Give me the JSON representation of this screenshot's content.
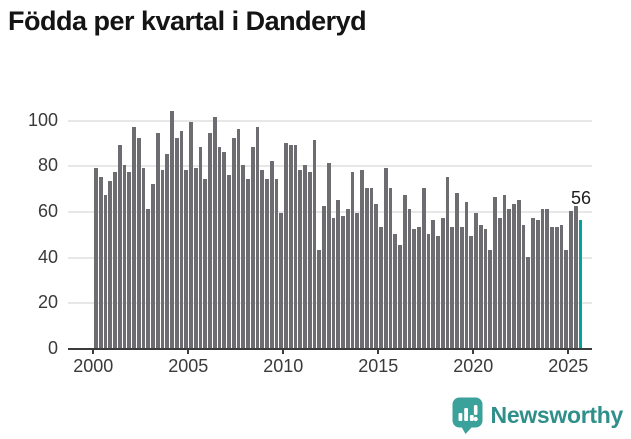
{
  "title": "Födda per kvartal i Danderyd",
  "annotation": {
    "last_value_label": "56"
  },
  "branding": {
    "name": "Newsworthy",
    "icon": "newsworthy-chart-bubble-icon"
  },
  "colors": {
    "bar": "#6c6c71",
    "highlight": "#00a49d",
    "grid": "#e7e7e7",
    "axis": "#3c3c3c",
    "title_text": "#141414",
    "tick_label_text": "#3a3a3a",
    "logo_teal": "#3ba29b",
    "logo_text_teal": "#2f8f8a"
  },
  "chart_data": {
    "type": "bar",
    "title": "Födda per kvartal i Danderyd",
    "frequency": "quarterly",
    "x_start": "2000-Q1",
    "x_end": "2025-Q3",
    "values": [
      79,
      75,
      67,
      73,
      77,
      89,
      80,
      77,
      97,
      92,
      79,
      61,
      72,
      94,
      78,
      85,
      104,
      92,
      95,
      78,
      99,
      79,
      88,
      74,
      94,
      101,
      88,
      86,
      76,
      92,
      96,
      80,
      74,
      88,
      97,
      78,
      74,
      82,
      74,
      59,
      90,
      89,
      89,
      78,
      80,
      77,
      91,
      43,
      62,
      81,
      57,
      65,
      58,
      61,
      77,
      59,
      78,
      70,
      70,
      63,
      53,
      79,
      70,
      50,
      45,
      67,
      61,
      52,
      53,
      70,
      50,
      56,
      49,
      57,
      75,
      53,
      68,
      53,
      64,
      49,
      59,
      54,
      52,
      43,
      66,
      57,
      67,
      61,
      63,
      65,
      54,
      40,
      57,
      56,
      61,
      61,
      53,
      53,
      54,
      43,
      60,
      62,
      56
    ],
    "highlighted_index": 102,
    "highlighted_value": 56,
    "highlighted_value_label": "56",
    "x_tick_labels": [
      "2000",
      "2005",
      "2010",
      "2015",
      "2020",
      "2025"
    ],
    "y_ticks": [
      0,
      20,
      40,
      60,
      80,
      100
    ],
    "ylim": [
      0,
      104.5
    ],
    "grid": true,
    "legend": false,
    "xlabel": "",
    "ylabel": ""
  }
}
